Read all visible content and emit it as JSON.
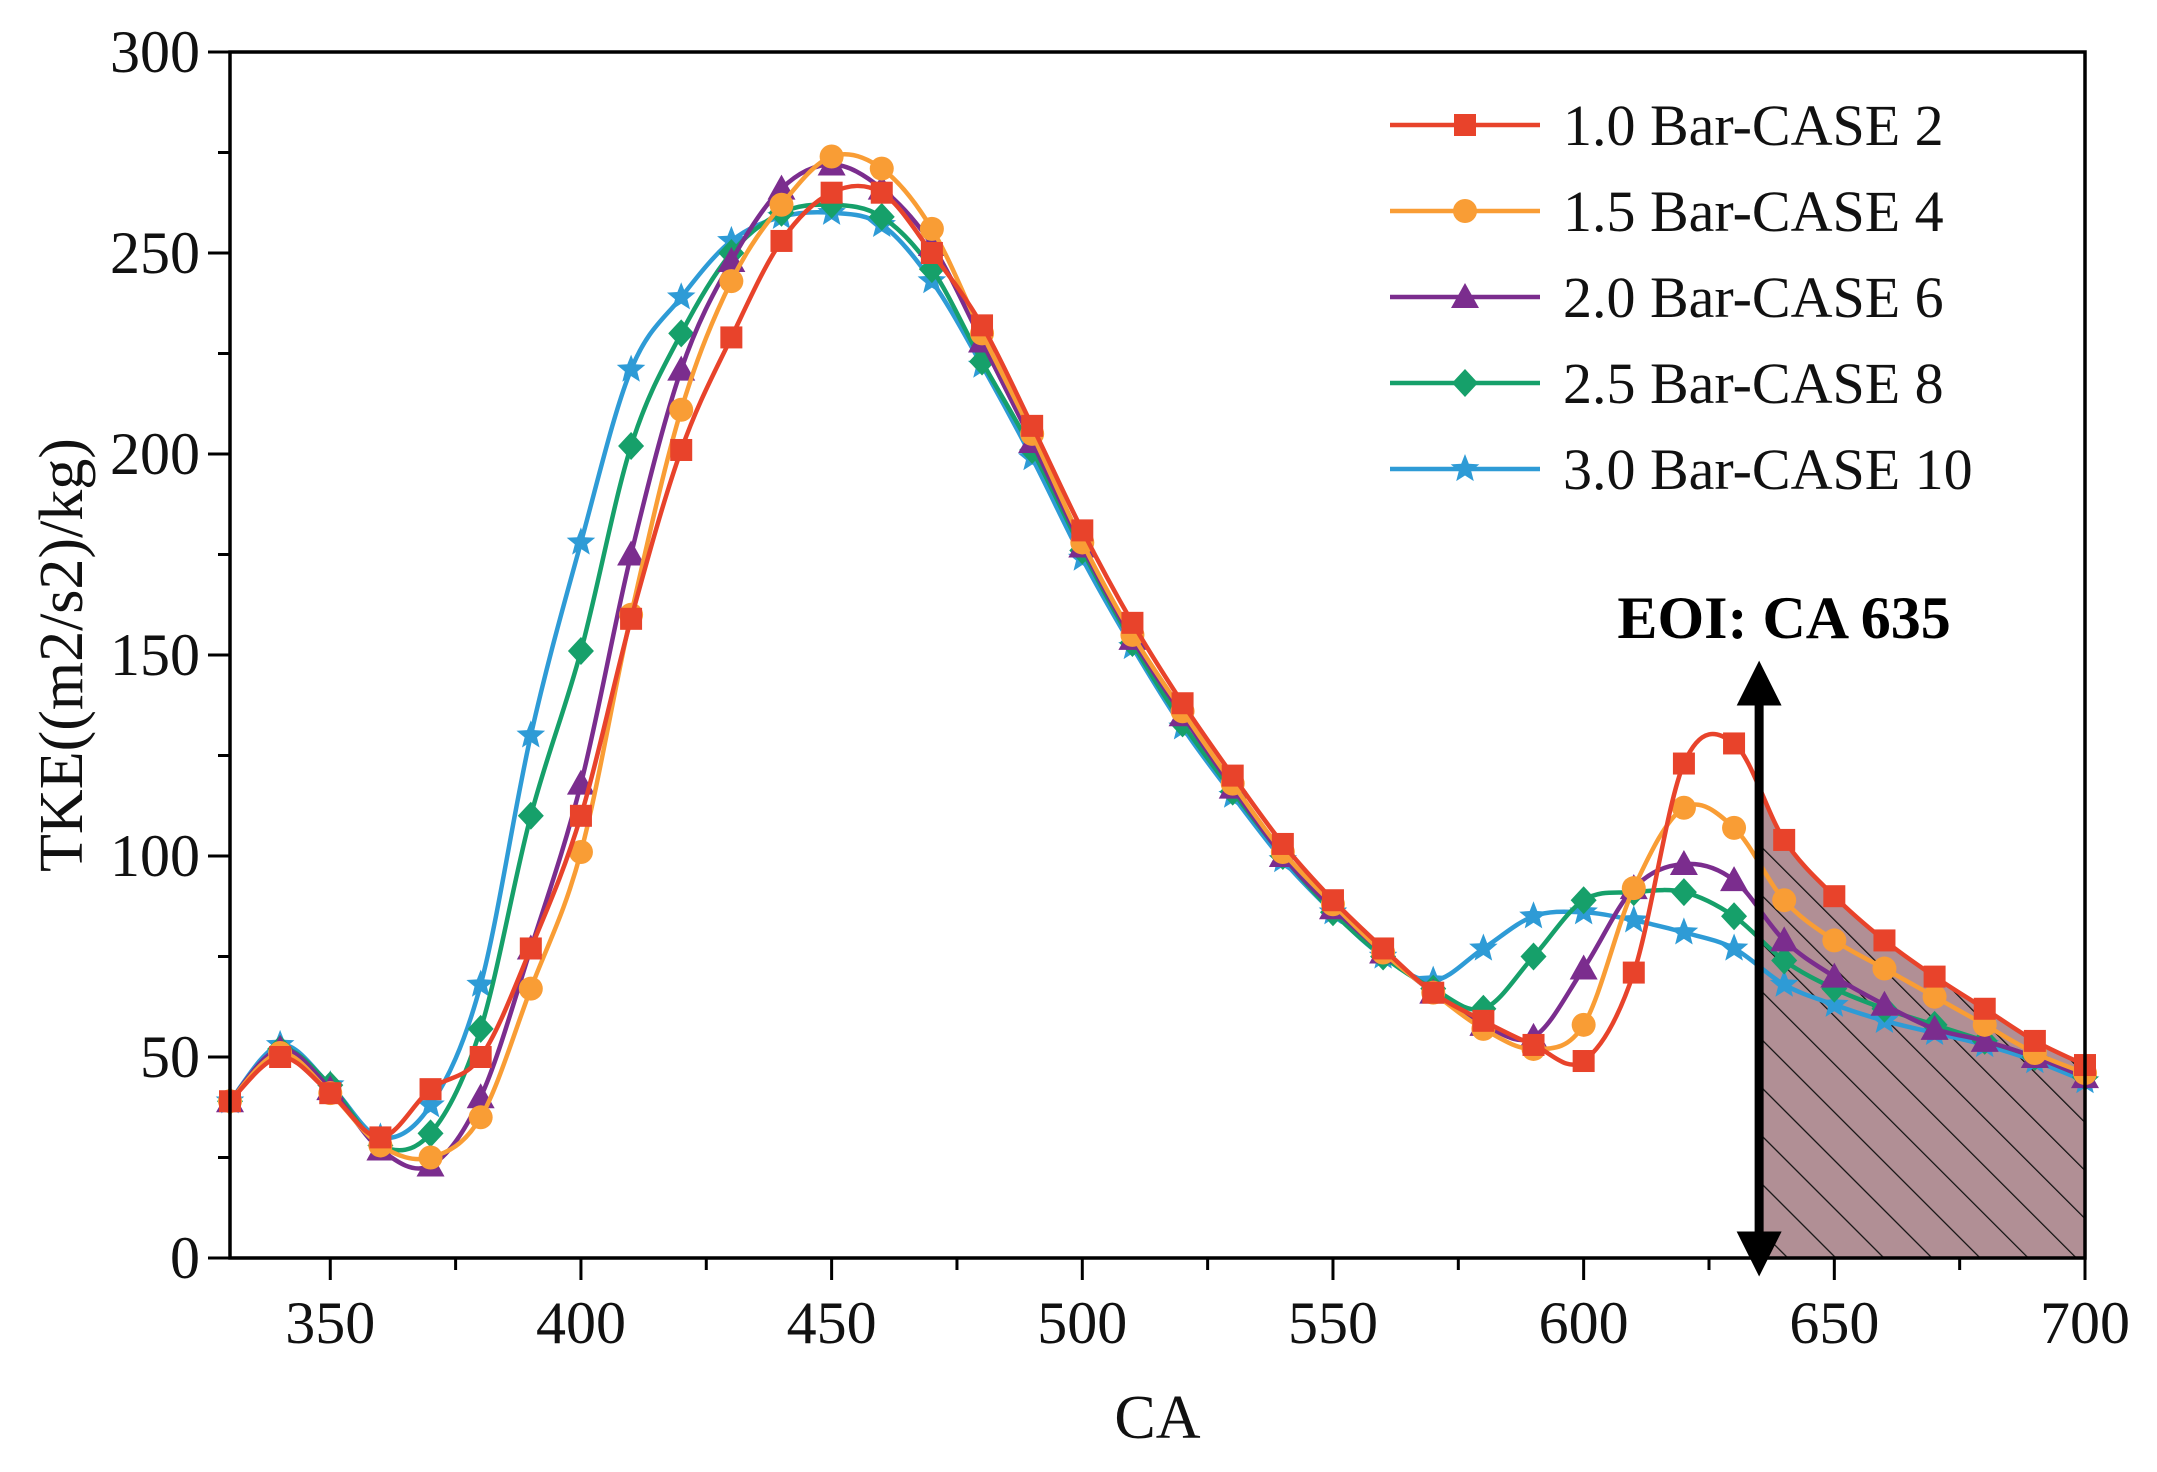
{
  "chart_data": {
    "type": "line",
    "title": "",
    "xlabel": "CA",
    "ylabel": "TKE((m2/s2)/kg)",
    "xlim": [
      330,
      700
    ],
    "ylim": [
      0,
      300
    ],
    "x_ticks": [
      350,
      400,
      450,
      500,
      550,
      600,
      650,
      700
    ],
    "y_ticks": [
      0,
      50,
      100,
      150,
      200,
      250,
      300
    ],
    "grid": false,
    "legend_position": "top-right",
    "x": [
      330,
      340,
      350,
      360,
      370,
      380,
      390,
      400,
      410,
      420,
      430,
      440,
      450,
      460,
      470,
      480,
      490,
      500,
      510,
      520,
      530,
      540,
      550,
      560,
      570,
      580,
      590,
      600,
      610,
      620,
      630,
      640,
      650,
      660,
      670,
      680,
      690,
      700
    ],
    "series": [
      {
        "name": "1.0 Bar-CASE 2",
        "color": "#e8432b",
        "marker": "square",
        "values": [
          39,
          50,
          41,
          30,
          42,
          50,
          77,
          110,
          159,
          201,
          229,
          253,
          265,
          265,
          250,
          232,
          207,
          181,
          158,
          138,
          120,
          103,
          89,
          77,
          66,
          59,
          53,
          49,
          71,
          123,
          128,
          104,
          90,
          79,
          70,
          62,
          54,
          48
        ]
      },
      {
        "name": "1.5 Bar-CASE 4",
        "color": "#f99d35",
        "marker": "circle",
        "values": [
          39,
          51,
          41,
          28,
          25,
          35,
          67,
          101,
          160,
          211,
          243,
          262,
          274,
          271,
          256,
          230,
          205,
          178,
          155,
          136,
          118,
          101,
          88,
          76,
          66,
          57,
          52,
          58,
          92,
          112,
          107,
          89,
          79,
          72,
          65,
          58,
          51,
          46
        ]
      },
      {
        "name": "2.0 Bar-CASE 6",
        "color": "#7b2d8e",
        "marker": "triangle",
        "values": [
          39,
          52,
          42,
          27,
          23,
          40,
          77,
          118,
          175,
          221,
          248,
          266,
          272,
          266,
          252,
          228,
          203,
          177,
          154,
          135,
          117,
          100,
          87,
          76,
          66,
          58,
          55,
          72,
          92,
          98,
          94,
          79,
          70,
          63,
          57,
          54,
          50,
          45
        ]
      },
      {
        "name": "2.5 Bar-CASE 8",
        "color": "#16a06a",
        "marker": "diamond",
        "values": [
          39,
          52,
          43,
          28,
          31,
          57,
          110,
          151,
          202,
          230,
          250,
          260,
          262,
          259,
          246,
          223,
          201,
          176,
          153,
          133,
          116,
          100,
          86,
          75,
          67,
          62,
          75,
          89,
          91,
          91,
          85,
          74,
          67,
          62,
          58,
          54,
          50,
          45
        ]
      },
      {
        "name": "3.0 Bar-CASE 10",
        "color": "#2e9bd6",
        "marker": "star",
        "values": [
          39,
          53,
          43,
          30,
          38,
          68,
          130,
          178,
          221,
          239,
          253,
          259,
          260,
          257,
          243,
          222,
          199,
          174,
          152,
          132,
          115,
          99,
          86,
          75,
          69,
          77,
          85,
          86,
          84,
          81,
          77,
          68,
          63,
          59,
          56,
          53,
          49,
          44
        ]
      }
    ],
    "annotation": {
      "text": "EOI: CA 635",
      "x": 635,
      "y_range": [
        0,
        143
      ],
      "shaded_region_x": [
        635,
        700
      ]
    }
  }
}
